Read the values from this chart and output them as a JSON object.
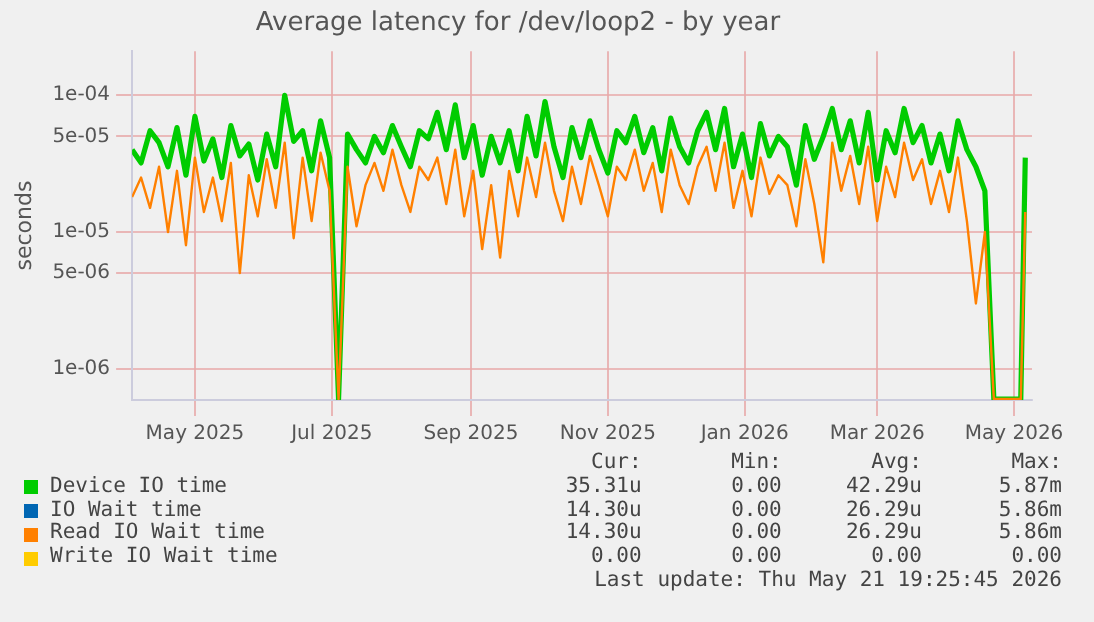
{
  "chart_data": {
    "type": "line",
    "title": "Average latency for /dev/loop2 - by year",
    "ylabel": "seconds",
    "log": "y",
    "grid": true,
    "legend": "bottom",
    "marker": "none",
    "line_style": "solid",
    "xlim": [
      "2025-04-18",
      "2026-05-24"
    ],
    "xticks": [
      {
        "value": "2025-05-16",
        "label": "May 2025"
      },
      {
        "value": "2025-07-16",
        "label": "Jul 2025"
      },
      {
        "value": "2025-09-16",
        "label": "Sep 2025"
      },
      {
        "value": "2025-11-16",
        "label": "Nov 2025"
      },
      {
        "value": "2026-01-16",
        "label": "Jan 2026"
      },
      {
        "value": "2026-03-16",
        "label": "Mar 2026"
      },
      {
        "value": "2026-05-16",
        "label": "May 2026"
      }
    ],
    "ylim": [
      5.9e-07,
      0.00021
    ],
    "yticks": [
      {
        "value": 1e-06,
        "label": "1e-06"
      },
      {
        "value": 5e-06,
        "label": "5e-06"
      },
      {
        "value": 1e-05,
        "label": "1e-05"
      },
      {
        "value": 5e-05,
        "label": "5e-05"
      },
      {
        "value": 0.0001,
        "label": "1e-04"
      }
    ],
    "x": [
      "2025-04-18",
      "2025-04-22",
      "2025-04-26",
      "2025-04-30",
      "2025-05-04",
      "2025-05-08",
      "2025-05-12",
      "2025-05-16",
      "2025-05-20",
      "2025-05-24",
      "2025-05-28",
      "2025-06-01",
      "2025-06-05",
      "2025-06-09",
      "2025-06-13",
      "2025-06-17",
      "2025-06-21",
      "2025-06-25",
      "2025-06-29",
      "2025-07-03",
      "2025-07-07",
      "2025-07-11",
      "2025-07-15",
      "2025-07-19",
      "2025-07-23",
      "2025-07-27",
      "2025-07-31",
      "2025-08-04",
      "2025-08-08",
      "2025-08-12",
      "2025-08-16",
      "2025-08-20",
      "2025-08-24",
      "2025-08-28",
      "2025-09-01",
      "2025-09-05",
      "2025-09-09",
      "2025-09-13",
      "2025-09-17",
      "2025-09-21",
      "2025-09-25",
      "2025-09-29",
      "2025-10-03",
      "2025-10-07",
      "2025-10-11",
      "2025-10-15",
      "2025-10-19",
      "2025-10-23",
      "2025-10-27",
      "2025-10-31",
      "2025-11-04",
      "2025-11-08",
      "2025-11-12",
      "2025-11-16",
      "2025-11-20",
      "2025-11-24",
      "2025-11-28",
      "2025-12-02",
      "2025-12-06",
      "2025-12-10",
      "2025-12-14",
      "2025-12-18",
      "2025-12-22",
      "2025-12-26",
      "2025-12-30",
      "2026-01-03",
      "2026-01-07",
      "2026-01-11",
      "2026-01-15",
      "2026-01-19",
      "2026-01-23",
      "2026-01-27",
      "2026-01-31",
      "2026-02-04",
      "2026-02-08",
      "2026-02-12",
      "2026-02-16",
      "2026-02-20",
      "2026-02-24",
      "2026-02-28",
      "2026-03-04",
      "2026-03-08",
      "2026-03-12",
      "2026-03-16",
      "2026-03-20",
      "2026-03-24",
      "2026-03-28",
      "2026-04-01",
      "2026-04-05",
      "2026-04-09",
      "2026-04-13",
      "2026-04-17",
      "2026-04-21",
      "2026-04-25",
      "2026-04-29",
      "2026-05-03",
      "2026-05-07",
      "2026-05-11",
      "2026-05-15",
      "2026-05-19",
      "2026-05-21"
    ],
    "series": [
      {
        "name": "Device IO time",
        "color": "#00cc00",
        "values": [
          4e-05,
          3.2e-05,
          5.5e-05,
          4.5e-05,
          3e-05,
          5.8e-05,
          2.6e-05,
          7e-05,
          3.3e-05,
          4.8e-05,
          2.5e-05,
          6e-05,
          3.6e-05,
          4.4e-05,
          2.4e-05,
          5.2e-05,
          3e-05,
          0.0001,
          4.6e-05,
          5.5e-05,
          2.8e-05,
          6.5e-05,
          3.5e-05,
          6e-07,
          5.2e-05,
          4e-05,
          3.2e-05,
          5e-05,
          3.8e-05,
          6e-05,
          4.2e-05,
          3e-05,
          5.5e-05,
          4.8e-05,
          7.5e-05,
          4e-05,
          8.5e-05,
          3.5e-05,
          6e-05,
          2.6e-05,
          5e-05,
          3.2e-05,
          5.5e-05,
          2.8e-05,
          7e-05,
          3.6e-05,
          9e-05,
          4.2e-05,
          2.5e-05,
          5.8e-05,
          3.5e-05,
          6.5e-05,
          4e-05,
          2.7e-05,
          5.5e-05,
          4.5e-05,
          7e-05,
          3.8e-05,
          5.8e-05,
          2.8e-05,
          6.8e-05,
          4.2e-05,
          3.2e-05,
          5.5e-05,
          7.5e-05,
          4e-05,
          8e-05,
          3e-05,
          5.2e-05,
          2.5e-05,
          6.2e-05,
          3.6e-05,
          5e-05,
          4.2e-05,
          2.2e-05,
          6e-05,
          3.4e-05,
          5e-05,
          8e-05,
          4e-05,
          6.5e-05,
          3.2e-05,
          7.5e-05,
          2.4e-05,
          5.5e-05,
          3.8e-05,
          8e-05,
          4.5e-05,
          6e-05,
          3.2e-05,
          5.2e-05,
          2.8e-05,
          6.5e-05,
          4e-05,
          3e-05,
          2e-05,
          6e-07,
          6e-07,
          6e-07,
          6e-07,
          3.5e-05
        ]
      },
      {
        "name": "IO Wait time",
        "color": "#0066b3",
        "values": [
          null,
          null,
          null,
          null,
          null,
          null,
          null,
          null,
          null,
          null,
          null,
          null,
          null,
          null,
          null,
          null,
          null,
          null,
          null,
          null,
          null,
          null,
          null,
          null,
          null,
          null,
          null,
          null,
          null,
          null,
          null,
          null,
          null,
          null,
          null,
          null,
          null,
          null,
          null,
          null,
          null,
          null,
          null,
          null,
          null,
          null,
          null,
          null,
          null,
          null,
          null,
          null,
          null,
          null,
          null,
          null,
          null,
          null,
          null,
          null,
          null,
          null,
          null,
          null,
          null,
          null,
          null,
          null,
          null,
          null,
          null,
          null,
          null,
          null,
          null,
          null,
          null,
          null,
          null,
          null,
          null,
          null,
          null,
          null,
          null,
          null,
          null,
          null,
          null,
          null,
          null,
          null,
          null,
          null,
          null,
          null,
          null,
          null,
          null,
          null,
          null
        ]
      },
      {
        "name": "Read IO Wait time",
        "color": "#ff8000",
        "values": [
          1.8e-05,
          2.5e-05,
          1.5e-05,
          3e-05,
          1e-05,
          2.8e-05,
          8e-06,
          3.5e-05,
          1.4e-05,
          2.5e-05,
          1.2e-05,
          3.2e-05,
          5e-06,
          2.6e-05,
          1.3e-05,
          3.4e-05,
          1.5e-05,
          4.5e-05,
          9e-06,
          3.5e-05,
          1.2e-05,
          3.8e-05,
          2e-05,
          6e-07,
          3e-05,
          1.1e-05,
          2.2e-05,
          3.2e-05,
          2e-05,
          4e-05,
          2.2e-05,
          1.4e-05,
          3e-05,
          2.4e-05,
          3.5e-05,
          1.6e-05,
          4e-05,
          1.3e-05,
          2.8e-05,
          7.5e-06,
          2.2e-05,
          6.5e-06,
          2.8e-05,
          1.3e-05,
          3.5e-05,
          1.8e-05,
          4.5e-05,
          2e-05,
          1.2e-05,
          3e-05,
          1.6e-05,
          3.6e-05,
          2.2e-05,
          1.3e-05,
          3e-05,
          2.4e-05,
          4e-05,
          2e-05,
          3.2e-05,
          1.4e-05,
          4e-05,
          2.2e-05,
          1.6e-05,
          3e-05,
          4.2e-05,
          2e-05,
          4.5e-05,
          1.5e-05,
          2.8e-05,
          1.3e-05,
          3.5e-05,
          1.9e-05,
          2.6e-05,
          2.2e-05,
          1.1e-05,
          3.4e-05,
          1.6e-05,
          6e-06,
          4.5e-05,
          2e-05,
          3.6e-05,
          1.6e-05,
          4.2e-05,
          1.2e-05,
          3e-05,
          1.8e-05,
          4.5e-05,
          2.4e-05,
          3.4e-05,
          1.6e-05,
          2.8e-05,
          1.4e-05,
          3.5e-05,
          1.2e-05,
          3e-06,
          1e-05,
          6e-07,
          6e-07,
          6e-07,
          6e-07,
          1.4e-05
        ]
      },
      {
        "name": "Write IO Wait time",
        "color": "#ffcc00",
        "values": [
          null,
          null,
          null,
          null,
          null,
          null,
          null,
          null,
          null,
          null,
          null,
          null,
          null,
          null,
          null,
          null,
          null,
          null,
          null,
          null,
          null,
          null,
          null,
          null,
          null,
          null,
          null,
          null,
          null,
          null,
          null,
          null,
          null,
          null,
          null,
          null,
          null,
          null,
          null,
          null,
          null,
          null,
          null,
          null,
          null,
          null,
          null,
          null,
          null,
          null,
          null,
          null,
          null,
          null,
          null,
          null,
          null,
          null,
          null,
          null,
          null,
          null,
          null,
          null,
          null,
          null,
          null,
          null,
          null,
          null,
          null,
          null,
          null,
          null,
          null,
          null,
          null,
          null,
          null,
          null,
          null,
          null,
          null,
          null,
          null,
          null,
          null,
          null,
          null,
          null,
          null,
          null,
          null,
          null,
          null,
          null,
          null,
          null,
          null,
          null,
          null
        ]
      }
    ],
    "annotations": [
      "Cur:",
      "Min:",
      "Avg:",
      "Max:",
      "35.31u",
      "0.00",
      "42.29u",
      "5.87m",
      "14.30u",
      "0.00",
      "26.29u",
      "5.86m",
      "14.30u",
      "0.00",
      "26.29u",
      "5.86m",
      "0.00",
      "0.00",
      "0.00",
      "0.00",
      "Last update: Thu May 21 19:25:45 2026"
    ]
  }
}
